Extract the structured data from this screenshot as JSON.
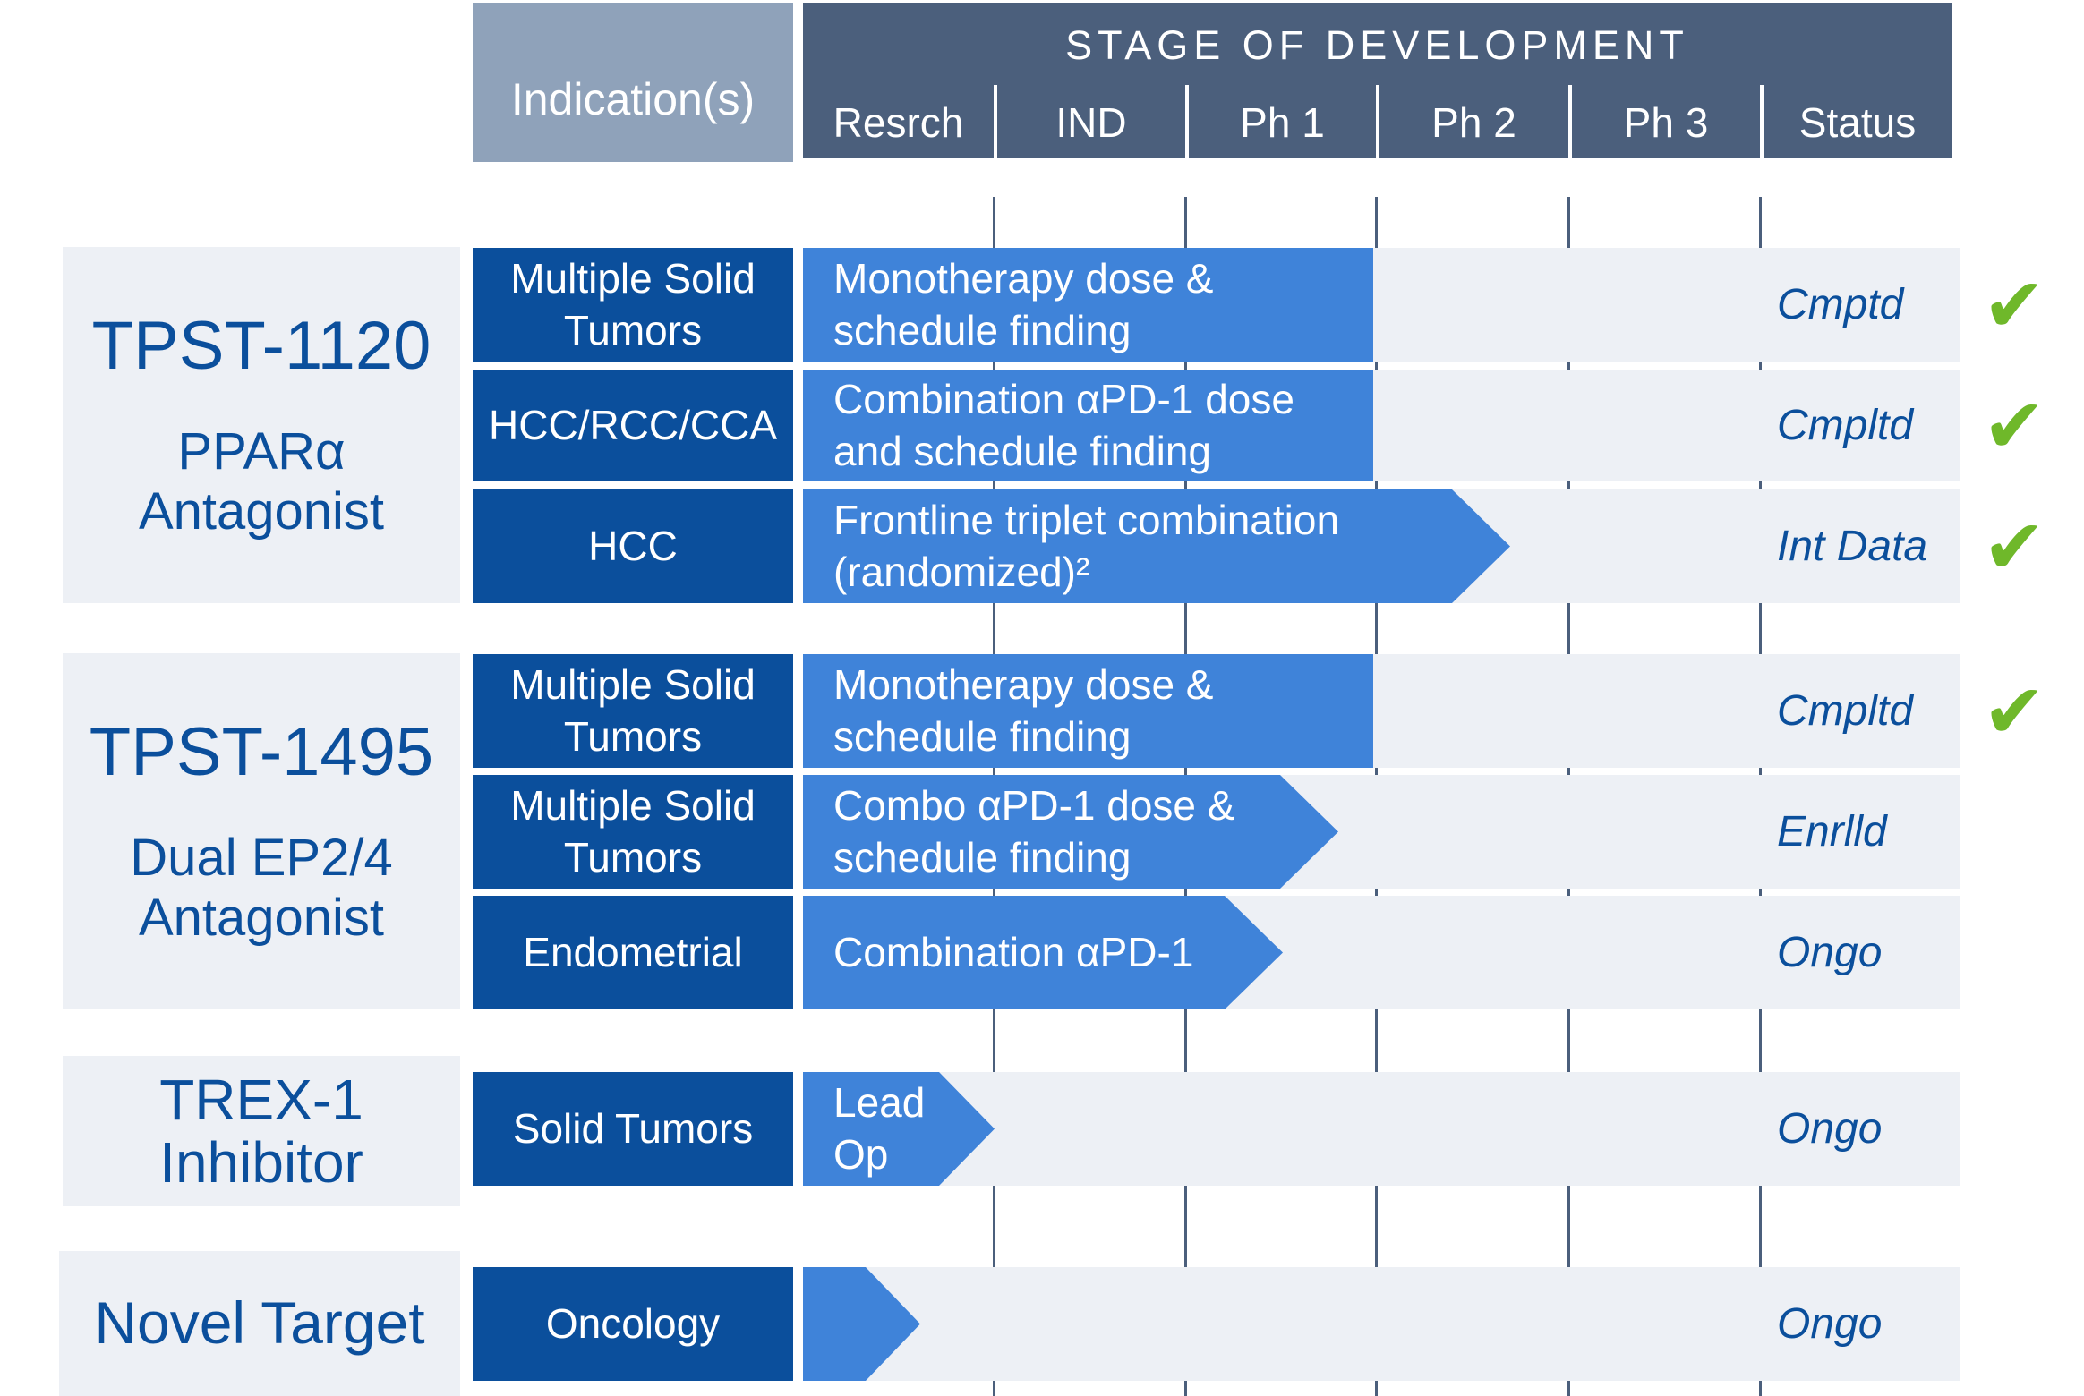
{
  "header": {
    "indication": "Indication(s)",
    "stage_title": "STAGE OF DEVELOPMENT",
    "phases": [
      "Resrch",
      "IND",
      "Ph 1",
      "Ph 2",
      "Ph 3",
      "Status"
    ]
  },
  "groups": [
    {
      "name": "TPST-1120",
      "subtitle": "PPARα\nAntagonist"
    },
    {
      "name": "TPST-1495",
      "subtitle": "Dual EP2/4\nAntagonist"
    },
    {
      "name": "TREX-1\nInhibitor",
      "subtitle": ""
    },
    {
      "name": "Novel Target",
      "subtitle": ""
    }
  ],
  "rows": [
    {
      "indication": "Multiple Solid\nTumors",
      "bar_label": "Monotherapy dose &\nschedule finding",
      "progress": "through Ph 1",
      "status": "Cmptd",
      "check": "✔"
    },
    {
      "indication": "HCC/RCC/CCA",
      "bar_label": "Combination αPD-1 dose\nand schedule finding",
      "progress": "through Ph 1",
      "status": "Cmpltd",
      "check": "✔"
    },
    {
      "indication": "HCC",
      "bar_label": "Frontline triplet combination\n(randomized)²",
      "progress": "into Ph 2",
      "status": "Int Data",
      "check": "✔"
    },
    {
      "indication": "Multiple Solid\nTumors",
      "bar_label": "Monotherapy dose &\nschedule finding",
      "progress": "through Ph 1",
      "status": "Cmpltd",
      "check": "✔"
    },
    {
      "indication": "Multiple Solid\nTumors",
      "bar_label": "Combo αPD-1 dose &\nschedule finding",
      "progress": "into Ph 1",
      "status": "Enrlld",
      "check": ""
    },
    {
      "indication": "Endometrial",
      "bar_label": "Combination αPD-1",
      "progress": "into Ph 1",
      "status": "Ongo",
      "check": ""
    },
    {
      "indication": "Solid Tumors",
      "bar_label": "Lead\nOp",
      "progress": "Resrch",
      "status": "Ongo",
      "check": ""
    },
    {
      "indication": "Oncology",
      "bar_label": "",
      "progress": "Resrch",
      "status": "Ongo",
      "check": ""
    }
  ],
  "colors": {
    "indication_header": "#8fa2ba",
    "stage_header": "#4b5f7c",
    "indication_cell": "#0b4f9c",
    "bar": "#3f83d9",
    "row_background": "#edf0f5",
    "text_blue": "#0b4f9c",
    "check": "#6fb82a"
  }
}
